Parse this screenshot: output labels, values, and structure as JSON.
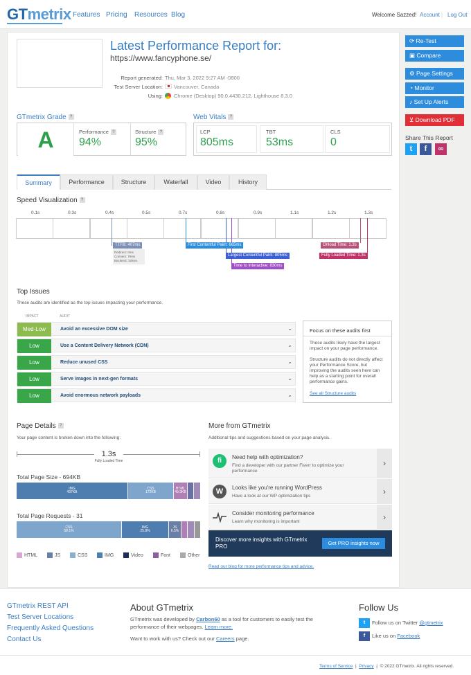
{
  "header": {
    "logo_gt": "GT",
    "logo_mx": "metrix",
    "nav": [
      "Features",
      "Pricing",
      "Resources",
      "Blog"
    ],
    "welcome": "Welcome Sazzed!",
    "account": "Account",
    "logout": "Log Out"
  },
  "report": {
    "title": "Latest Performance Report for:",
    "url": "https://www.fancyphone.se/",
    "generated_label": "Report generated:",
    "generated_value": "Thu, Mar 3, 2022 9:27 AM -0800",
    "location_label": "Test Server Location:",
    "location_value": "Vancouver, Canada",
    "using_label": "Using:",
    "using_value": "Chrome (Desktop) 90.0.4430.212, Lighthouse 8.3.0"
  },
  "grade": {
    "title": "GTmetrix Grade",
    "letter": "A",
    "perf_label": "Performance",
    "perf_value": "94%",
    "struct_label": "Structure",
    "struct_value": "95%"
  },
  "vitals": {
    "title": "Web Vitals",
    "lcp_label": "LCP",
    "lcp_value": "805ms",
    "tbt_label": "TBT",
    "tbt_value": "53ms",
    "cls_label": "CLS",
    "cls_value": "0"
  },
  "tabs": [
    "Summary",
    "Performance",
    "Structure",
    "Waterfall",
    "Video",
    "History"
  ],
  "speed": {
    "title": "Speed Visualization",
    "ticks": [
      "0.1s",
      "0.3s",
      "0.4s",
      "0.5s",
      "0.7s",
      "0.8s",
      "0.9s",
      "1.1s",
      "1.2s",
      "1.3s"
    ],
    "ttfb": "TTFB: 407ms",
    "redirect": "Redirect: 0ms",
    "connect": "Connect: 79ms",
    "backend": "Backend: 328ms",
    "fcp": "First Contentful Paint: 665ms",
    "lcp": "Largest Contentful Paint: 805ms",
    "tti": "Time to Interactive: 830ms",
    "onload": "Onload Time: 1.3s",
    "fully": "Fully Loaded Time: 1.3s"
  },
  "issues": {
    "title": "Top Issues",
    "desc": "These audits are identified as the top issues impacting your performance.",
    "col_impact": "IMPACT",
    "col_audit": "AUDIT",
    "rows": [
      {
        "impact": "Med-Low",
        "audit": "Avoid an excessive DOM size",
        "color": "#8dbb4f"
      },
      {
        "impact": "Low",
        "audit": "Use a Content Delivery Network (CDN)",
        "color": "#3aa64a"
      },
      {
        "impact": "Low",
        "audit": "Reduce unused CSS",
        "color": "#3aa64a"
      },
      {
        "impact": "Low",
        "audit": "Serve images in next-gen formats",
        "color": "#3aa64a"
      },
      {
        "impact": "Low",
        "audit": "Avoid enormous network payloads",
        "color": "#3aa64a"
      }
    ],
    "focus_title": "Focus on these audits first",
    "focus_p1": "These audits likely have the largest impact on your page performance.",
    "focus_p2": "Structure audits do not directly affect your Performance Score, but improving the audits seen here can help as a starting point for overall performance gains.",
    "focus_link": "See all Structure audits"
  },
  "details": {
    "title": "Page Details",
    "desc": "Your page content is broken down into the following:",
    "loaded_value": "1.3s",
    "loaded_label": "Fully Loaded Time",
    "size_title": "Total Page Size - 694KB",
    "req_title": "Total Page Requests - 31",
    "size_img": "IMG",
    "size_img_v": "437KB",
    "size_css": "CSS",
    "size_css_v": "172KB",
    "size_html": "HTML",
    "size_html_v": "49.3KB",
    "req_css": "CSS",
    "req_css_v": "58.1%",
    "req_img": "IMG",
    "req_img_v": "25.8%",
    "req_js": "JS",
    "req_js_v": "6.5%",
    "legend": [
      "HTML",
      "JS",
      "CSS",
      "IMG",
      "Video",
      "Font",
      "Other"
    ]
  },
  "more": {
    "title": "More from GTmetrix",
    "desc": "Additional tips and suggestions based on your page analysis.",
    "items": [
      {
        "t": "Need help with optimization?",
        "d": "Find a developer with our partner Fiverr to optimize your performance"
      },
      {
        "t": "Looks like you're running WordPress",
        "d": "Have a look at our WP optimization tips"
      },
      {
        "t": "Consider monitoring performance",
        "d": "Learn why monitoring is important"
      }
    ],
    "pro_text": "Discover more insights with GTmetrix PRO",
    "pro_btn": "Get PRO insights now",
    "blog": "Read our blog for more performance tips and advice."
  },
  "side": {
    "retest": "Re-Test",
    "compare": "Compare",
    "settings": "Page Settings",
    "monitor": "Monitor",
    "alerts": "Set Up Alerts",
    "pdf": "Download PDF",
    "share": "Share This Report"
  },
  "footer": {
    "links": [
      "GTmetrix REST API",
      "Test Server Locations",
      "Frequently Asked Questions",
      "Contact Us"
    ],
    "about_title": "About GTmetrix",
    "about_1": "GTmetrix was developed by",
    "about_carbon": "Carbon60",
    "about_2": "as a tool for customers to easily test the performance of their webpages.",
    "about_learn": "Learn more.",
    "work_1": "Want to work with us? Check out our",
    "work_careers": "Careers",
    "work_2": "page.",
    "follow_title": "Follow Us",
    "twitter": "Follow us on Twitter",
    "twitter_handle": "@gtmetrix",
    "facebook": "Like us on",
    "facebook_link": "Facebook",
    "terms": "Terms of Service",
    "privacy": "Privacy",
    "copy": "© 2022 GTmetrix. All rights reserved."
  }
}
